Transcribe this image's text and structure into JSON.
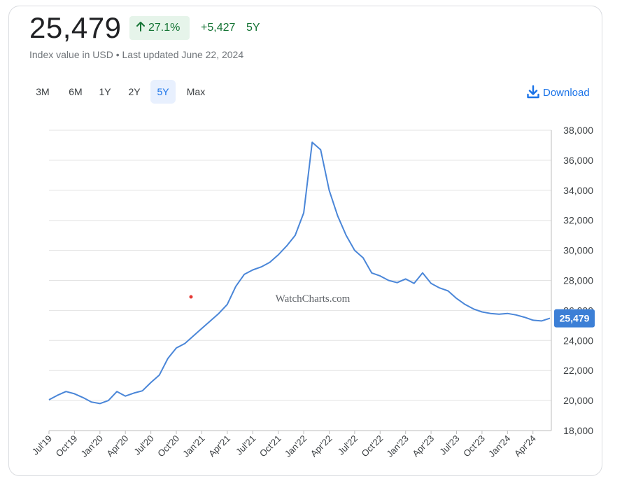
{
  "header": {
    "value": "25,479",
    "pct_change": "27.1%",
    "abs_change": "+5,427",
    "period": "5Y",
    "subtitle": "Index value in USD • Last updated June 22, 2024"
  },
  "tabs": [
    {
      "label": "3M",
      "active": false
    },
    {
      "label": "6M",
      "active": false
    },
    {
      "label": "1Y",
      "active": false
    },
    {
      "label": "2Y",
      "active": false
    },
    {
      "label": "5Y",
      "active": true
    },
    {
      "label": "Max",
      "active": false
    }
  ],
  "download": {
    "label": "Download",
    "icon": "download-icon"
  },
  "colors": {
    "accent": "#1a73e8",
    "line": "#4a86d8",
    "positive": "#137333",
    "positive_bg": "#e6f4ea",
    "current_label_bg": "#3c7fd6"
  },
  "chart_data": {
    "type": "line",
    "title": "",
    "xlabel": "",
    "ylabel": "",
    "ylim": [
      18000,
      38000
    ],
    "yticks": [
      "18,000",
      "20,000",
      "22,000",
      "24,000",
      "26,000",
      "28,000",
      "30,000",
      "32,000",
      "34,000",
      "36,000",
      "38,000"
    ],
    "xticks": [
      "Jul'19",
      "Oct'19",
      "Jan'20",
      "Apr'20",
      "Jul'20",
      "Oct'20",
      "Jan'21",
      "Apr'21",
      "Jul'21",
      "Oct'21",
      "Jan'22",
      "Apr'22",
      "Jul'22",
      "Oct'22",
      "Jan'23",
      "Apr'23",
      "Jul'23",
      "Oct'23",
      "Jan'24",
      "Apr'24"
    ],
    "grid": true,
    "watermark": "WatchCharts.com",
    "current_value_label": "25,479",
    "series": [
      {
        "name": "",
        "x": [
          "2019-07",
          "2019-08",
          "2019-09",
          "2019-10",
          "2019-11",
          "2019-12",
          "2020-01",
          "2020-02",
          "2020-03",
          "2020-04",
          "2020-05",
          "2020-06",
          "2020-07",
          "2020-08",
          "2020-09",
          "2020-10",
          "2020-11",
          "2020-12",
          "2021-01",
          "2021-02",
          "2021-03",
          "2021-04",
          "2021-05",
          "2021-06",
          "2021-07",
          "2021-08",
          "2021-09",
          "2021-10",
          "2021-11",
          "2021-12",
          "2022-01",
          "2022-02",
          "2022-03",
          "2022-04",
          "2022-05",
          "2022-06",
          "2022-07",
          "2022-08",
          "2022-09",
          "2022-10",
          "2022-11",
          "2022-12",
          "2023-01",
          "2023-02",
          "2023-03",
          "2023-04",
          "2023-05",
          "2023-06",
          "2023-07",
          "2023-08",
          "2023-09",
          "2023-10",
          "2023-11",
          "2023-12",
          "2024-01",
          "2024-02",
          "2024-03",
          "2024-04",
          "2024-05",
          "2024-06"
        ],
        "values": [
          20050,
          20350,
          20600,
          20450,
          20200,
          19900,
          19800,
          20000,
          20600,
          20300,
          20500,
          20650,
          21200,
          21700,
          22800,
          23500,
          23800,
          24300,
          24800,
          25300,
          25800,
          26400,
          27600,
          28400,
          28700,
          28900,
          29200,
          29700,
          30300,
          31000,
          32500,
          37200,
          36700,
          34000,
          32300,
          31000,
          30000,
          29500,
          28500,
          28300,
          28000,
          27850,
          28100,
          27800,
          28500,
          27800,
          27500,
          27300,
          26800,
          26400,
          26100,
          25900,
          25800,
          25750,
          25800,
          25700,
          25550,
          25350,
          25300,
          25479
        ]
      }
    ]
  }
}
